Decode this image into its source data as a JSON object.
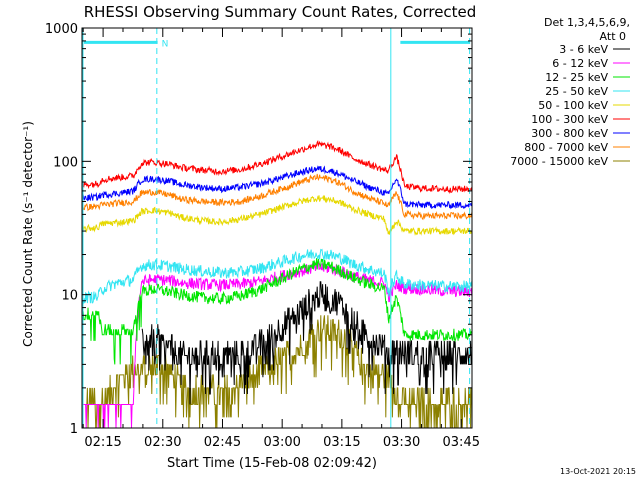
{
  "figure": {
    "footer_timestamp": "13-Oct-2021 20:15"
  },
  "chart_data": {
    "type": "line",
    "title": "RHESSI Observing Summary Count Rates, Corrected",
    "xlabel": "Start Time (15-Feb-08 02:09:42)",
    "ylabel": "Corrected Count Rate (s⁻¹ detector⁻¹)",
    "x_unit": "minutes after 02:09:42",
    "xlim": [
      0,
      98
    ],
    "ylim": [
      1,
      1000
    ],
    "yscale": "log",
    "x_ticks": [
      {
        "label": "02:15",
        "t": 5.3
      },
      {
        "label": "02:30",
        "t": 20.3
      },
      {
        "label": "02:45",
        "t": 35.3
      },
      {
        "label": "03:00",
        "t": 50.3
      },
      {
        "label": "03:15",
        "t": 65.3
      },
      {
        "label": "03:30",
        "t": 80.3
      },
      {
        "label": "03:45",
        "t": 95.3
      }
    ],
    "y_ticks": [
      {
        "label": "1",
        "v": 1
      },
      {
        "label": "10",
        "v": 10
      },
      {
        "label": "100",
        "v": 100
      },
      {
        "label": "1000",
        "v": 1000
      }
    ],
    "legend": {
      "header": [
        "Det 1,3,4,5,6,9,",
        "Att 0"
      ],
      "position": "right"
    },
    "annotations": {
      "flags": [
        {
          "label": "N",
          "start": 0.5,
          "end": 19.0,
          "value": 780,
          "color": "#33e5f2"
        },
        {
          "label": "",
          "start": 80.0,
          "end": 97.5,
          "value": 780,
          "color": "#33e5f2"
        }
      ],
      "dashed_markers": [
        18.8,
        97.4
      ],
      "solid_markers": [
        77.6
      ]
    },
    "series": [
      {
        "name": "3 - 6 keV",
        "color": "#000000",
        "x": [
          0,
          5,
          13,
          15,
          19,
          22,
          25,
          35,
          41,
          45,
          50,
          55,
          59,
          60,
          62,
          65,
          67,
          70,
          72,
          75,
          77,
          79,
          81,
          85,
          90,
          98
        ],
        "y": [
          null,
          null,
          null,
          4.5,
          4.5,
          4.0,
          3.5,
          3.5,
          3.7,
          4.3,
          5.5,
          7.5,
          9.5,
          10.0,
          9.6,
          8.5,
          7.0,
          5.5,
          4.8,
          4.2,
          3.7,
          4.0,
          3.7,
          3.6,
          3.6,
          3.6
        ]
      },
      {
        "name": "6 - 12 keV",
        "color": "#ff00ff",
        "x": [
          0,
          5,
          10,
          13,
          15,
          18,
          22,
          25,
          30,
          35,
          40,
          45,
          50,
          55,
          59,
          62,
          65,
          68,
          72,
          76,
          77,
          79,
          81,
          85,
          90,
          98
        ],
        "y": [
          1.5,
          1.5,
          1.5,
          1.5,
          12.5,
          13.0,
          12.8,
          12.3,
          12.0,
          11.8,
          12.0,
          12.6,
          13.8,
          15.0,
          16.0,
          15.8,
          15.0,
          13.8,
          12.8,
          12.2,
          9.5,
          11.8,
          11.2,
          11.0,
          10.7,
          10.5
        ]
      },
      {
        "name": "12 - 25 keV",
        "color": "#00e600",
        "x": [
          0,
          4,
          5,
          8,
          13,
          15,
          18,
          22,
          25,
          30,
          35,
          40,
          45,
          50,
          55,
          59,
          62,
          65,
          68,
          72,
          76,
          77,
          79,
          81,
          85,
          90,
          98
        ],
        "y": [
          7.0,
          7.5,
          5.3,
          5.3,
          5.3,
          10.5,
          11.0,
          10.5,
          10.0,
          9.5,
          9.3,
          9.8,
          11.0,
          13.0,
          15.5,
          17.0,
          16.5,
          15.0,
          13.5,
          12.0,
          11.0,
          6.5,
          9.5,
          5.0,
          5.0,
          5.0,
          5.0
        ]
      },
      {
        "name": "25 - 50 keV",
        "color": "#33e5f2",
        "x": [
          0,
          4,
          5,
          8,
          13,
          15,
          18,
          22,
          25,
          30,
          35,
          40,
          45,
          50,
          55,
          59,
          62,
          65,
          68,
          72,
          76,
          77,
          79,
          81,
          85,
          90,
          98
        ],
        "y": [
          9.5,
          9.6,
          11.0,
          12.0,
          13.0,
          16.5,
          16.8,
          16.3,
          15.6,
          15.0,
          14.6,
          14.8,
          15.8,
          17.5,
          19.5,
          20.5,
          20.0,
          18.8,
          17.0,
          15.5,
          14.3,
          10.5,
          13.8,
          12.0,
          11.8,
          11.6,
          11.5
        ]
      },
      {
        "name": "50 - 100 keV",
        "color": "#e6d800",
        "x": [
          0,
          4,
          5,
          10,
          13,
          15,
          18,
          22,
          25,
          30,
          35,
          40,
          45,
          50,
          55,
          59,
          62,
          65,
          68,
          72,
          76,
          77,
          79,
          81,
          85,
          90,
          98
        ],
        "y": [
          31,
          32,
          34,
          35,
          36,
          42,
          43,
          41,
          38,
          36,
          35,
          37,
          40,
          45,
          50,
          53,
          52,
          49,
          44,
          40,
          37,
          28,
          36,
          30,
          30,
          30,
          30
        ]
      },
      {
        "name": "100 - 300 keV",
        "color": "#ff0000",
        "x": [
          0,
          4,
          5,
          10,
          13,
          15,
          18,
          22,
          25,
          30,
          35,
          40,
          45,
          50,
          55,
          59,
          62,
          65,
          68,
          72,
          76,
          77,
          79,
          81,
          85,
          90,
          98
        ],
        "y": [
          67,
          68,
          73,
          76,
          78,
          97,
          99,
          95,
          90,
          86,
          84,
          87,
          96,
          108,
          122,
          134,
          130,
          120,
          106,
          95,
          86,
          85,
          108,
          65,
          63,
          62,
          62
        ]
      },
      {
        "name": "300 - 800 keV",
        "color": "#0000ff",
        "x": [
          0,
          4,
          5,
          10,
          13,
          15,
          18,
          22,
          25,
          30,
          35,
          40,
          45,
          50,
          55,
          59,
          62,
          65,
          68,
          72,
          76,
          77,
          79,
          81,
          85,
          90,
          98
        ],
        "y": [
          53,
          54,
          56,
          58,
          60,
          73,
          74,
          71,
          67,
          64,
          62,
          64,
          68,
          75,
          83,
          88,
          86,
          80,
          72,
          64,
          58,
          56,
          74,
          48,
          47,
          47,
          47
        ]
      },
      {
        "name": "800 - 7000 keV",
        "color": "#ff8000",
        "x": [
          0,
          4,
          5,
          10,
          13,
          15,
          18,
          22,
          25,
          30,
          35,
          40,
          45,
          50,
          55,
          59,
          62,
          65,
          68,
          72,
          76,
          77,
          79,
          81,
          85,
          90,
          98
        ],
        "y": [
          45,
          46,
          47,
          49,
          50,
          58,
          59,
          56,
          52,
          50,
          49,
          50,
          55,
          62,
          70,
          76,
          74,
          68,
          60,
          53,
          48,
          46,
          58,
          40,
          39,
          39,
          39
        ]
      },
      {
        "name": "7000 - 15000 keV",
        "color": "#8c8000",
        "x": [
          0,
          5,
          10,
          15,
          20,
          25,
          30,
          35,
          41,
          45,
          50,
          55,
          59,
          62,
          65,
          68,
          70,
          75,
          77,
          79,
          81,
          85,
          90,
          98
        ],
        "y": [
          1.5,
          1.5,
          2.5,
          2.8,
          3.0,
          2.0,
          2.0,
          1.8,
          2.2,
          2.7,
          3.2,
          4.0,
          5.5,
          5.5,
          5.0,
          4.0,
          3.0,
          2.5,
          2.5,
          1.8,
          1.5,
          1.5,
          1.5,
          1.5
        ]
      }
    ]
  }
}
